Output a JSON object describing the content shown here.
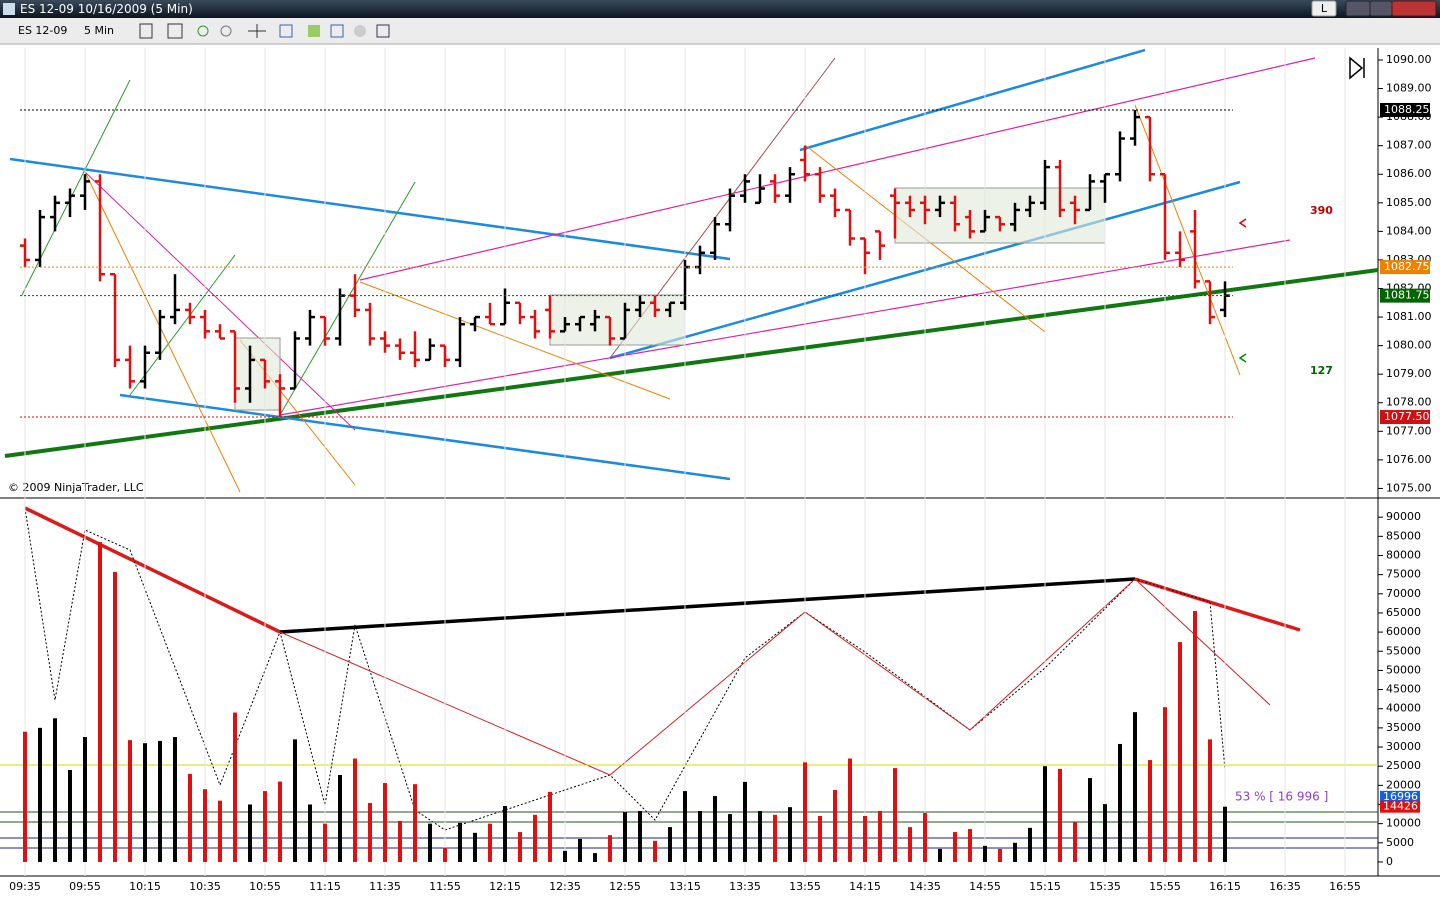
{
  "window": {
    "title": "ES 12-09  10/16/2009 (5 Min)",
    "button": "L"
  },
  "toolbar": {
    "instrument": "ES 12-09",
    "interval": "5 Min"
  },
  "copyright": "© 2009 NinjaTrader, LLC",
  "chart_data": [
    {
      "type": "ohlc",
      "up_color": "#000000",
      "down_color": "#e01010",
      "open": [
        1083.5,
        1083,
        1084.5,
        1085,
        1085.25,
        1085.75,
        1082.5,
        1079.5,
        1078.75,
        1079.75,
        1081,
        1081.25,
        1081,
        1080.5,
        1080.5,
        1078.5,
        1079.5,
        1078.75,
        1078.5,
        1080.25,
        1081,
        1080.25,
        1081.75,
        1081.25,
        1080.25,
        1080,
        1079.75,
        1079.5,
        1080,
        1079.5,
        1080.75,
        1081,
        1080.75,
        1081.5,
        1081,
        1081.25,
        1080.5,
        1080.75,
        1080.75,
        1081,
        1080.25,
        1081.25,
        1081.5,
        1081.25,
        1081.5,
        1082.75,
        1083.25,
        1084.25,
        1085.25,
        1085,
        1085.75,
        1085.25,
        1086.5,
        1086,
        1085.25,
        1084.75,
        1083.75,
        1084,
        1085.25,
        1085,
        1085,
        1084.75,
        1085,
        1084.5,
        1084,
        1084.5,
        1084.25,
        1084.75,
        1085,
        1086.25,
        1085,
        1084.75,
        1085.75,
        1086,
        1087.25,
        1088,
        1086,
        1083.25,
        1084,
        1082.25,
        1081.25
      ],
      "high": [
        1083.75,
        1084.75,
        1085.25,
        1085.5,
        1086,
        1086,
        1082.5,
        1080,
        1080,
        1081.25,
        1082.5,
        1081.5,
        1081.25,
        1080.75,
        1080.5,
        1080,
        1079.5,
        1079,
        1080.5,
        1081.25,
        1081,
        1082,
        1082.5,
        1081.5,
        1080.5,
        1080.25,
        1080.5,
        1080.25,
        1080,
        1081,
        1081,
        1081.5,
        1082,
        1081.5,
        1081.25,
        1081.75,
        1081,
        1081,
        1081.25,
        1081,
        1081.5,
        1081.75,
        1081.75,
        1081.5,
        1083,
        1083.5,
        1084.5,
        1085.5,
        1086,
        1086,
        1086,
        1086.25,
        1087,
        1086.25,
        1085.5,
        1084.75,
        1083.75,
        1084,
        1085.5,
        1085.25,
        1085.25,
        1085.25,
        1085.25,
        1084.75,
        1084.75,
        1084.5,
        1085,
        1085.25,
        1086.5,
        1086.5,
        1085.25,
        1086,
        1086,
        1087.5,
        1088.25,
        1088,
        1086,
        1084,
        1084.75,
        1082.25,
        1082.25
      ],
      "low": [
        1082.75,
        1082.75,
        1084,
        1084.5,
        1084.75,
        1082.25,
        1079.25,
        1078.5,
        1078.5,
        1079.5,
        1080.75,
        1080.75,
        1080.25,
        1080.25,
        1078,
        1078,
        1078.5,
        1077.5,
        1078.5,
        1080,
        1080,
        1080,
        1081,
        1080,
        1079.75,
        1079.5,
        1079.25,
        1079.5,
        1079.25,
        1079.25,
        1080.5,
        1080.75,
        1080.75,
        1080.75,
        1080.25,
        1080.25,
        1080.5,
        1080.5,
        1080.5,
        1080,
        1080.25,
        1081,
        1081,
        1081,
        1081.25,
        1082.5,
        1083,
        1084,
        1085,
        1085,
        1085,
        1085,
        1085.75,
        1085,
        1084.5,
        1083.5,
        1082.5,
        1083,
        1083.75,
        1084.5,
        1084.25,
        1084.5,
        1084,
        1083.75,
        1084,
        1084,
        1084,
        1084.5,
        1084.75,
        1084.5,
        1084.25,
        1084.75,
        1085,
        1085.75,
        1087,
        1085.75,
        1083,
        1082.75,
        1082,
        1080.75,
        1081
      ],
      "close": [
        1083,
        1084.5,
        1085,
        1085.25,
        1085.75,
        1082.5,
        1079.5,
        1078.75,
        1079.75,
        1081,
        1081.25,
        1081,
        1080.5,
        1080.25,
        1078.5,
        1079.5,
        1078.75,
        1078.5,
        1080.25,
        1081,
        1080.25,
        1081.75,
        1081.25,
        1080.25,
        1080,
        1079.75,
        1079.5,
        1080,
        1079.5,
        1080.75,
        1081,
        1080.75,
        1081.5,
        1081,
        1080.5,
        1080.5,
        1080.75,
        1081,
        1081,
        1080.25,
        1081.25,
        1081.5,
        1081.25,
        1081.5,
        1082.75,
        1083.25,
        1084.25,
        1085.25,
        1085.75,
        1085.5,
        1085.25,
        1086,
        1086,
        1085.25,
        1084.75,
        1083.75,
        1083.25,
        1083.5,
        1085,
        1084.75,
        1084.75,
        1085,
        1084.25,
        1084,
        1084.5,
        1084.25,
        1084.75,
        1085,
        1086.25,
        1084.75,
        1084.75,
        1085.75,
        1086,
        1087.25,
        1088,
        1086,
        1083.25,
        1083,
        1082.25,
        1081,
        1081.75
      ],
      "ylim": [
        1074.7,
        1090.35
      ],
      "yticks": [
        {
          "value": 1075,
          "label": "1075.00"
        },
        {
          "value": 1076,
          "label": "1076.00"
        },
        {
          "value": 1077,
          "label": "1077.00"
        },
        {
          "value": 1078,
          "label": "1078.00"
        },
        {
          "value": 1079,
          "label": "1079.00"
        },
        {
          "value": 1080,
          "label": "1080.00"
        },
        {
          "value": 1081,
          "label": "1081.00"
        },
        {
          "value": 1082,
          "label": "1082.00"
        },
        {
          "value": 1083,
          "label": "1083.00"
        },
        {
          "value": 1084,
          "label": "1084.00"
        },
        {
          "value": 1085,
          "label": "1085.00"
        },
        {
          "value": 1086,
          "label": "1086.00"
        },
        {
          "value": 1087,
          "label": "1087.00"
        },
        {
          "value": 1088,
          "label": "1088.00"
        },
        {
          "value": 1089,
          "label": "1089.00"
        },
        {
          "value": 1090,
          "label": "1090.00"
        }
      ],
      "price_markers": [
        {
          "value": 1088.25,
          "label": "1088.25",
          "color": "#000000"
        },
        {
          "value": 1082.75,
          "label": "1082.75",
          "color": "#f08000"
        },
        {
          "value": 1081.75,
          "label": "1081.75",
          "color": "#006400"
        },
        {
          "value": 1077.5,
          "label": "1077.50",
          "color": "#d01010"
        }
      ],
      "annotations": [
        {
          "text": "390",
          "color": "#c00000"
        },
        {
          "text": "127",
          "color": "#006400"
        }
      ]
    },
    {
      "type": "bar",
      "values": [
        34000,
        35000,
        37500,
        24000,
        32600,
        83500,
        75700,
        31800,
        31000,
        31600,
        32600,
        23000,
        19000,
        16000,
        39000,
        15000,
        18500,
        21000,
        32000,
        15000,
        10000,
        22700,
        27000,
        15400,
        20600,
        10700,
        20300,
        10000,
        3700,
        10200,
        7600,
        10000,
        14600,
        7800,
        12300,
        18300,
        2900,
        6000,
        2300,
        7000,
        13000,
        13300,
        5500,
        9100,
        18500,
        13300,
        17200,
        12500,
        20900,
        13300,
        12300,
        14300,
        26000,
        12000,
        18800,
        27000,
        12000,
        13300,
        24500,
        9100,
        12800,
        3400,
        7800,
        8600,
        4200,
        3400,
        5000,
        8900,
        25000,
        24300,
        10400,
        21900,
        15100,
        30800,
        39100,
        26600,
        40400,
        57400,
        65500,
        32000,
        14426
      ],
      "ylim": [
        -2100,
        93700
      ],
      "yticks": [
        0,
        5000,
        10000,
        15000,
        20000,
        25000,
        30000,
        35000,
        40000,
        45000,
        50000,
        55000,
        60000,
        65000,
        70000,
        75000,
        80000,
        85000,
        90000
      ],
      "volume_markers": [
        {
          "value": 16996,
          "color": "#1060e0"
        },
        {
          "value": 14426,
          "color": "#e01010"
        }
      ],
      "annotation": "53 % [ 16 996 ]"
    }
  ],
  "xticks": [
    "09:35",
    "09:55",
    "10:15",
    "10:35",
    "10:55",
    "11:15",
    "11:35",
    "11:55",
    "12:15",
    "12:35",
    "12:55",
    "13:15",
    "13:35",
    "13:55",
    "14:15",
    "14:35",
    "14:55",
    "15:15",
    "15:35",
    "15:55",
    "16:15",
    "16:35",
    "16:55"
  ]
}
